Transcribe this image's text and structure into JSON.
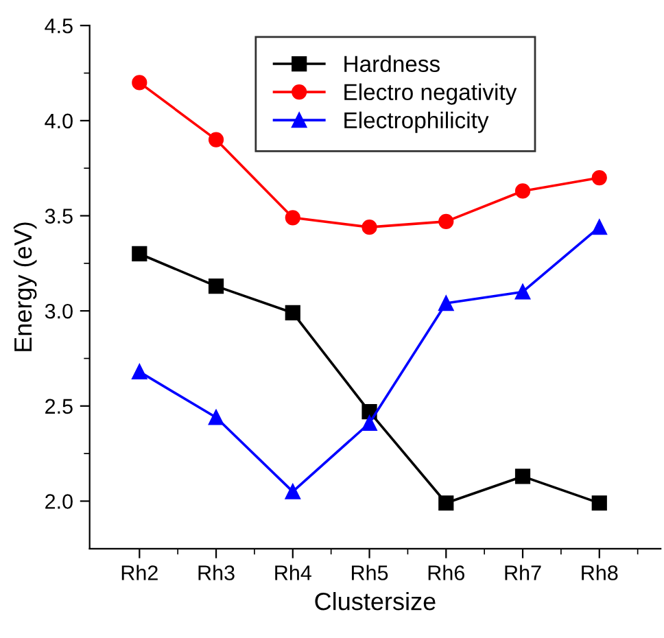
{
  "chart_data": {
    "type": "line",
    "xlabel": "Clustersize",
    "ylabel": "Energy (eV)",
    "categories": [
      "Rh2",
      "Rh3",
      "Rh4",
      "Rh5",
      "Rh6",
      "Rh7",
      "Rh8"
    ],
    "series": [
      {
        "name": "Hardness",
        "color": "#000000",
        "marker": "square",
        "values": [
          3.3,
          3.13,
          2.99,
          2.47,
          1.99,
          2.13,
          1.99
        ]
      },
      {
        "name": "Electro negativity",
        "color": "#ff0000",
        "marker": "circle",
        "values": [
          4.2,
          3.9,
          3.49,
          3.44,
          3.47,
          3.63,
          3.7
        ]
      },
      {
        "name": "Electrophilicity",
        "color": "#0000ff",
        "marker": "triangle",
        "values": [
          2.68,
          2.44,
          2.05,
          2.41,
          3.04,
          3.1,
          3.44
        ]
      }
    ],
    "ylim": [
      1.75,
      4.5
    ],
    "yticks": [
      {
        "value": 2,
        "label": "2.0"
      },
      2.5,
      {
        "value": 3,
        "label": "3.0"
      },
      3.5,
      {
        "value": 4,
        "label": "4.0"
      },
      4.5
    ],
    "grid": false,
    "legend": "top right",
    "line_style": "solid"
  }
}
